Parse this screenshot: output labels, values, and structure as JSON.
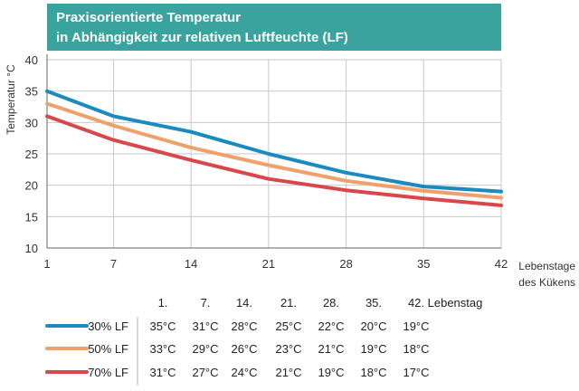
{
  "chart_data": {
    "type": "line",
    "title": "Praxisorientierte Temperatur",
    "subtitle": "in Abhängigkeit zur relativen Luftfeuchte (LF)",
    "ylabel": "Temperatur °C",
    "xlabel_line1": "Lebenstage",
    "xlabel_line2": "des Kükens",
    "x": [
      1,
      7,
      14,
      21,
      28,
      35,
      42
    ],
    "x_tick_labels": [
      "1",
      "7",
      "14",
      "21",
      "28",
      "35",
      "42"
    ],
    "ylim": [
      10,
      40
    ],
    "y_ticks": [
      10,
      15,
      20,
      25,
      30,
      35,
      40
    ],
    "y_tick_labels": [
      "10",
      "15",
      "20",
      "25",
      "30",
      "35",
      "40"
    ],
    "grid": true,
    "series": [
      {
        "name": "30% LF",
        "color": "#1b8bbf",
        "values": [
          35,
          31,
          28.5,
          25,
          22,
          19.8,
          19
        ]
      },
      {
        "name": "50% LF",
        "color": "#f0a06a",
        "values": [
          33,
          29.5,
          26,
          23.2,
          20.7,
          19.1,
          18
        ]
      },
      {
        "name": "70% LF",
        "color": "#d9474a",
        "values": [
          31,
          27.2,
          24,
          21,
          19.2,
          17.9,
          16.8
        ]
      }
    ]
  },
  "table": {
    "header_days": [
      "1.",
      "7.",
      "14.",
      "21.",
      "28.",
      "35.",
      "42."
    ],
    "header_label": "Lebenstag",
    "rows": [
      {
        "label": "30% LF",
        "color": "#1b8bbf",
        "cells": [
          "35°C",
          "31°C",
          "28°C",
          "25°C",
          "22°C",
          "20°C",
          "19°C"
        ]
      },
      {
        "label": "50% LF",
        "color": "#f0a06a",
        "cells": [
          "33°C",
          "29°C",
          "26°C",
          "23°C",
          "21°C",
          "19°C",
          "18°C"
        ]
      },
      {
        "label": "70% LF",
        "color": "#d9474a",
        "cells": [
          "31°C",
          "27°C",
          "24°C",
          "21°C",
          "19°C",
          "18°C",
          "17°C"
        ]
      }
    ]
  }
}
